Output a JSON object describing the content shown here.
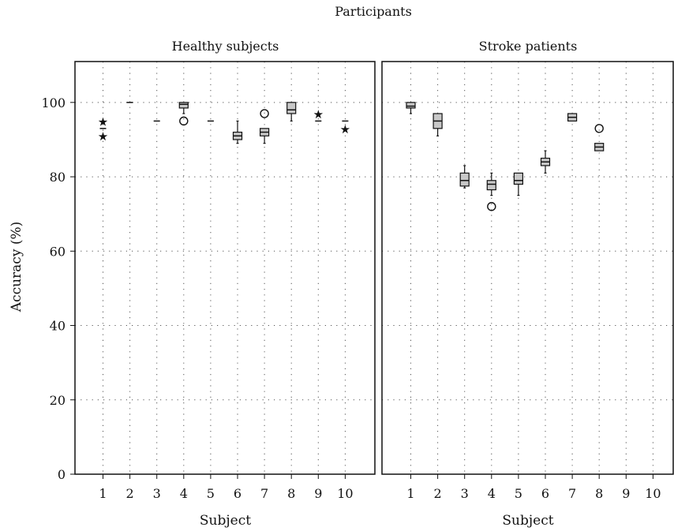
{
  "chart_data": {
    "type": "boxplot",
    "title": "Participants",
    "ylabel": "Accuracy (%)",
    "ylim": [
      0,
      111
    ],
    "yticks": [
      0,
      20,
      40,
      60,
      80,
      100
    ],
    "xticks": [
      "1",
      "2",
      "3",
      "4",
      "5",
      "6",
      "7",
      "8",
      "9",
      "10"
    ],
    "grid": true,
    "panels": [
      {
        "title": "Healthy subjects",
        "xlabel": "Subject",
        "subjects": [
          {
            "x": 1,
            "min": 93,
            "q1": 93,
            "median": 93,
            "q3": 93,
            "max": 93,
            "outliers": [
              {
                "value": 95,
                "marker": "star"
              },
              {
                "value": 91,
                "marker": "star"
              }
            ]
          },
          {
            "x": 2,
            "min": 100,
            "q1": 100,
            "median": 100,
            "q3": 100,
            "max": 100,
            "outliers": []
          },
          {
            "x": 3,
            "min": 95,
            "q1": 95,
            "median": 95,
            "q3": 95,
            "max": 95,
            "outliers": []
          },
          {
            "x": 4,
            "min": 97,
            "q1": 98.5,
            "median": 99.5,
            "q3": 100,
            "max": 100,
            "outliers": [
              {
                "value": 95,
                "marker": "circle"
              }
            ]
          },
          {
            "x": 5,
            "min": 95,
            "q1": 95,
            "median": 95,
            "q3": 95,
            "max": 95,
            "outliers": []
          },
          {
            "x": 6,
            "min": 89,
            "q1": 90,
            "median": 91,
            "q3": 92,
            "max": 95,
            "outliers": []
          },
          {
            "x": 7,
            "min": 89,
            "q1": 91,
            "median": 92,
            "q3": 93,
            "max": 93,
            "outliers": [
              {
                "value": 97,
                "marker": "circle"
              }
            ]
          },
          {
            "x": 8,
            "min": 95,
            "q1": 97,
            "median": 98,
            "q3": 100,
            "max": 100,
            "outliers": []
          },
          {
            "x": 9,
            "min": 95,
            "q1": 95,
            "median": 95,
            "q3": 95,
            "max": 95,
            "outliers": [
              {
                "value": 97,
                "marker": "star"
              }
            ]
          },
          {
            "x": 10,
            "min": 95,
            "q1": 95,
            "median": 95,
            "q3": 95,
            "max": 95,
            "outliers": [
              {
                "value": 93,
                "marker": "star"
              }
            ]
          }
        ]
      },
      {
        "title": "Stroke patients",
        "xlabel": "Subject",
        "subjects": [
          {
            "x": 1,
            "min": 97,
            "q1": 98.5,
            "median": 99,
            "q3": 100,
            "max": 100,
            "outliers": []
          },
          {
            "x": 2,
            "min": 91,
            "q1": 93,
            "median": 95,
            "q3": 97,
            "max": 97,
            "outliers": []
          },
          {
            "x": 3,
            "min": 77,
            "q1": 77.5,
            "median": 79,
            "q3": 81,
            "max": 83,
            "outliers": []
          },
          {
            "x": 4,
            "min": 75,
            "q1": 76.5,
            "median": 78,
            "q3": 79,
            "max": 81,
            "outliers": [
              {
                "value": 72,
                "marker": "circle"
              }
            ]
          },
          {
            "x": 5,
            "min": 75,
            "q1": 78,
            "median": 79,
            "q3": 81,
            "max": 81,
            "outliers": []
          },
          {
            "x": 6,
            "min": 81,
            "q1": 83,
            "median": 84,
            "q3": 85,
            "max": 87,
            "outliers": []
          },
          {
            "x": 7,
            "min": 95,
            "q1": 95,
            "median": 96,
            "q3": 97,
            "max": 97,
            "outliers": []
          },
          {
            "x": 8,
            "min": 87,
            "q1": 87,
            "median": 88,
            "q3": 89,
            "max": 89,
            "outliers": [
              {
                "value": 93,
                "marker": "circle"
              }
            ]
          },
          {
            "x": 9,
            "min": null,
            "q1": null,
            "median": null,
            "q3": null,
            "max": null,
            "outliers": []
          },
          {
            "x": 10,
            "min": null,
            "q1": null,
            "median": null,
            "q3": null,
            "max": null,
            "outliers": []
          }
        ]
      }
    ]
  }
}
